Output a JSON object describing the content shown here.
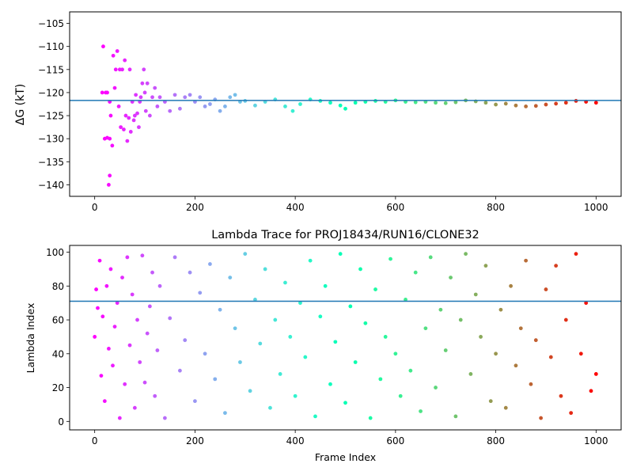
{
  "chart_data": [
    {
      "type": "scatter",
      "title": "",
      "xlabel": "",
      "ylabel": "ΔG (kT)",
      "xlim": [
        -50,
        1050
      ],
      "ylim": [
        -142.5,
        -102.5
      ],
      "xticks": [
        0,
        200,
        400,
        600,
        800,
        1000
      ],
      "yticks": [
        -140,
        -135,
        -130,
        -125,
        -120,
        -115,
        -110,
        -105
      ],
      "grid": false,
      "colormap": "rainbow",
      "reference_line": {
        "y": -121.7,
        "color": "#1f77b4"
      },
      "series": [
        {
          "color_by": "x",
          "x": [
            15,
            17,
            20,
            22,
            25,
            25,
            28,
            30,
            30,
            30,
            32,
            35,
            37,
            40,
            42,
            45,
            48,
            50,
            52,
            55,
            58,
            60,
            62,
            65,
            68,
            70,
            72,
            75,
            78,
            80,
            82,
            85,
            88,
            90,
            92,
            95,
            98,
            100,
            102,
            105,
            110,
            115,
            120,
            125,
            130,
            140,
            150,
            160,
            170,
            180,
            190,
            200,
            210,
            220,
            230,
            240,
            250,
            260,
            270,
            280,
            290,
            300,
            320,
            340,
            360,
            380,
            395,
            410,
            430,
            450,
            470,
            490,
            500,
            520,
            540,
            560,
            580,
            600,
            620,
            640,
            660,
            680,
            700,
            720,
            740,
            760,
            780,
            800,
            820,
            840,
            860,
            880,
            900,
            920,
            940,
            960,
            980,
            1000
          ],
          "y": [
            -120,
            -110,
            -130,
            -120,
            -129.8,
            -120,
            -140,
            -138,
            -130,
            -122,
            -125,
            -131.5,
            -112,
            -119,
            -115,
            -111,
            -123,
            -115,
            -127.5,
            -115,
            -128,
            -113,
            -125,
            -130.5,
            -125.5,
            -115,
            -128.5,
            -122,
            -126,
            -125,
            -120.5,
            -124.5,
            -127.5,
            -122,
            -121,
            -118,
            -115,
            -120,
            -124,
            -118,
            -125,
            -121,
            -119,
            -123,
            -121,
            -122,
            -124,
            -120.5,
            -123.5,
            -121,
            -120.5,
            -122,
            -121,
            -123,
            -122.5,
            -121.5,
            -124,
            -123,
            -121,
            -120.5,
            -122,
            -121.8,
            -122.8,
            -122,
            -121.5,
            -123,
            -124,
            -122.5,
            -121.5,
            -121.8,
            -122.2,
            -122.8,
            -123.5,
            -122.2,
            -122,
            -121.8,
            -122,
            -121.7,
            -122,
            -122.1,
            -122,
            -122.2,
            -122.3,
            -122.1,
            -121.7,
            -121.9,
            -122.2,
            -122.6,
            -122.4,
            -122.8,
            -123,
            -122.9,
            -122.6,
            -122.4,
            -122.2,
            -121.8,
            -122,
            -122.2
          ]
        }
      ]
    },
    {
      "type": "scatter",
      "title": "Lambda Trace for PROJ18434/RUN16/CLONE32",
      "xlabel": "Frame Index",
      "ylabel": "Lambda Index",
      "xlim": [
        -50,
        1050
      ],
      "ylim": [
        -5,
        104
      ],
      "xticks": [
        0,
        200,
        400,
        600,
        800,
        1000
      ],
      "yticks": [
        0,
        20,
        40,
        60,
        80,
        100
      ],
      "grid": false,
      "colormap": "rainbow",
      "reference_line": {
        "y": 71,
        "color": "#1f77b4"
      },
      "series": [
        {
          "color_by": "x",
          "x": [
            0,
            3,
            6,
            10,
            13,
            16,
            20,
            24,
            28,
            32,
            36,
            40,
            45,
            50,
            55,
            60,
            65,
            70,
            75,
            80,
            85,
            90,
            95,
            100,
            105,
            110,
            115,
            120,
            125,
            130,
            140,
            150,
            160,
            170,
            180,
            190,
            200,
            210,
            220,
            230,
            240,
            250,
            260,
            270,
            280,
            290,
            300,
            310,
            320,
            330,
            340,
            350,
            360,
            370,
            380,
            390,
            400,
            410,
            420,
            430,
            440,
            450,
            460,
            470,
            480,
            490,
            500,
            510,
            520,
            530,
            540,
            550,
            560,
            570,
            580,
            590,
            600,
            610,
            620,
            630,
            640,
            650,
            660,
            670,
            680,
            690,
            700,
            710,
            720,
            730,
            740,
            750,
            760,
            770,
            780,
            790,
            800,
            810,
            820,
            830,
            840,
            850,
            860,
            870,
            880,
            890,
            900,
            910,
            920,
            930,
            940,
            950,
            960,
            970,
            980,
            990,
            1000
          ],
          "y": [
            50,
            78,
            67,
            95,
            27,
            62,
            12,
            80,
            43,
            90,
            33,
            56,
            70,
            2,
            85,
            22,
            97,
            45,
            75,
            8,
            60,
            35,
            98,
            23,
            52,
            68,
            88,
            15,
            42,
            80,
            2,
            61,
            97,
            30,
            48,
            88,
            12,
            76,
            40,
            93,
            25,
            66,
            5,
            85,
            55,
            35,
            99,
            18,
            72,
            46,
            90,
            8,
            60,
            28,
            82,
            50,
            15,
            70,
            38,
            95,
            3,
            62,
            80,
            22,
            47,
            99,
            11,
            68,
            35,
            90,
            58,
            2,
            78,
            25,
            50,
            96,
            40,
            15,
            72,
            30,
            88,
            6,
            55,
            97,
            20,
            66,
            42,
            85,
            3,
            60,
            99,
            28,
            75,
            50,
            92,
            12,
            40,
            66,
            8,
            80,
            33,
            55,
            95,
            22,
            48,
            2,
            78,
            38,
            92,
            15,
            60,
            5,
            99,
            40,
            70,
            18,
            28
          ]
        }
      ]
    }
  ]
}
